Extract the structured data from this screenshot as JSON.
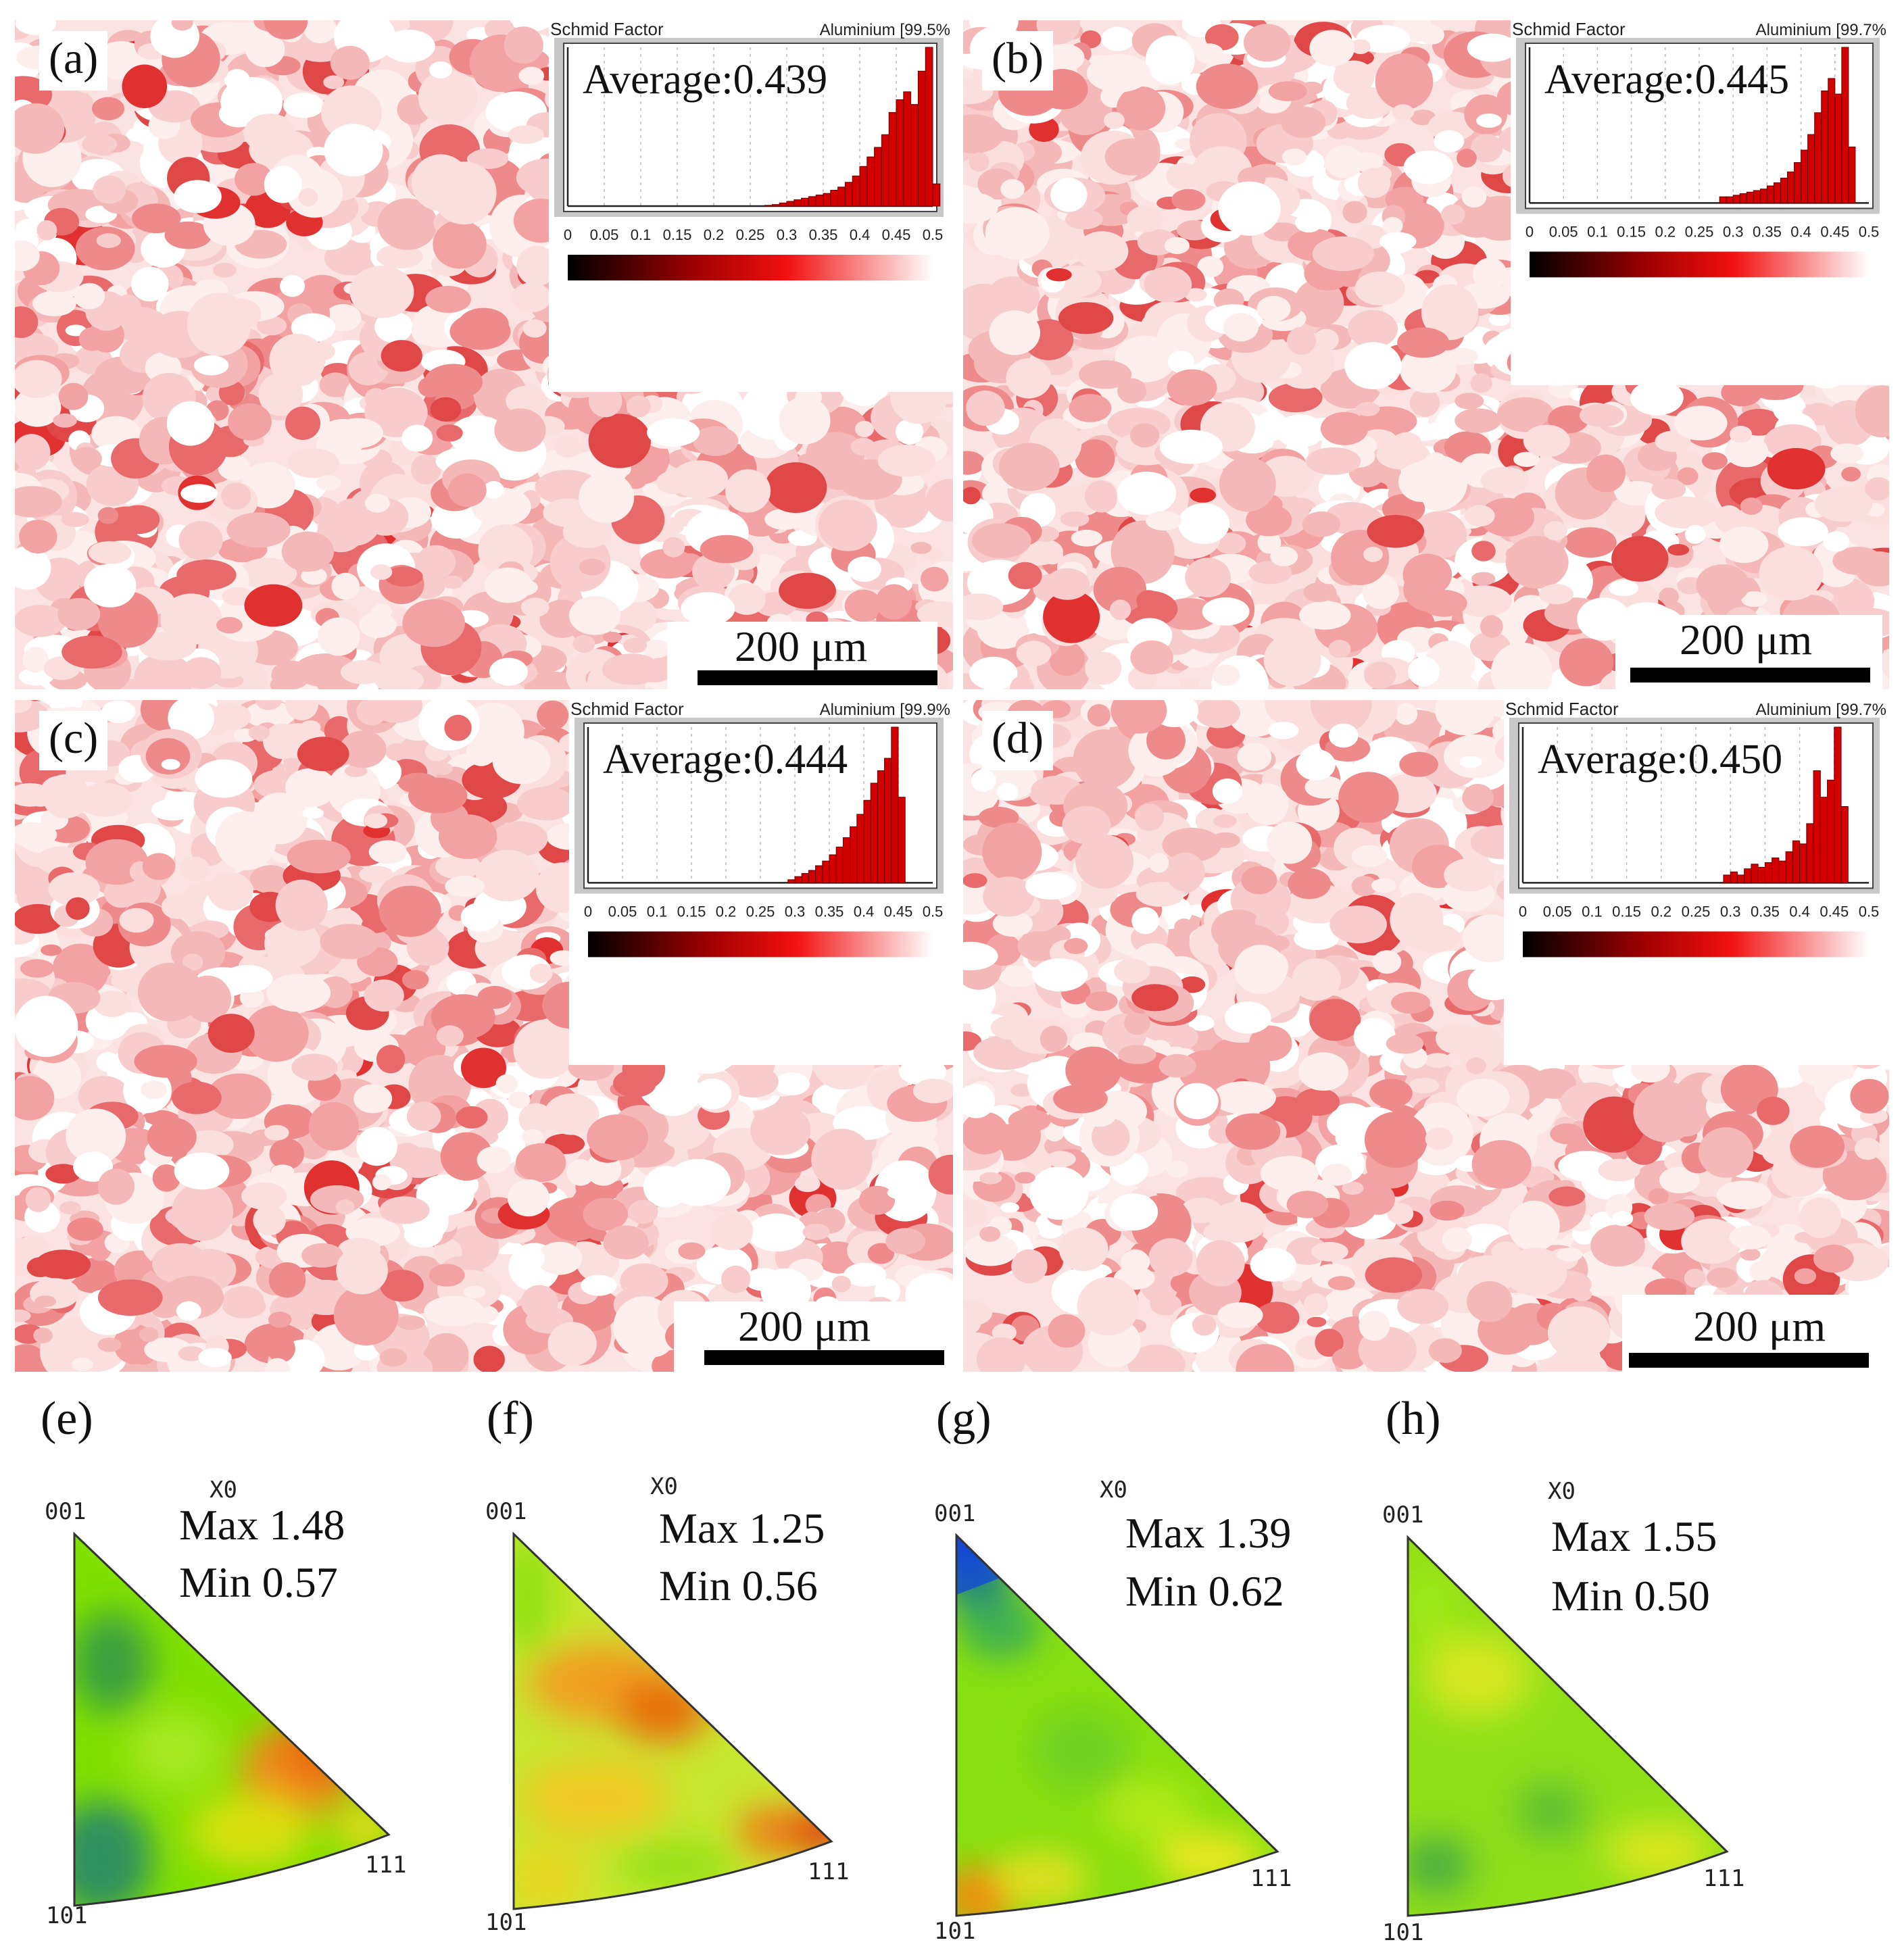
{
  "maps": [
    {
      "label": "(a)",
      "average_text": "Average:0.439",
      "title_left": "Schmid Factor",
      "title_right": "Aluminium [99.5%",
      "scale": "200 μm"
    },
    {
      "label": "(b)",
      "average_text": "Average:0.445",
      "title_left": "Schmid Factor",
      "title_right": "Aluminium [99.7%",
      "scale": "200 μm"
    },
    {
      "label": "(c)",
      "average_text": "Average:0.444",
      "title_left": "Schmid Factor",
      "title_right": "Aluminium [99.9%",
      "scale": "200 μm"
    },
    {
      "label": "(d)",
      "average_text": "Average:0.450",
      "title_left": "Schmid Factor",
      "title_right": "Aluminium [99.7%",
      "scale": "200 μm"
    }
  ],
  "chart_data": [
    {
      "type": "bar",
      "panel": "a",
      "title": "Schmid Factor",
      "xlim": [
        0,
        0.5
      ],
      "xticks": [
        "0",
        "0.05",
        "0.1",
        "0.15",
        "0.2",
        "0.25",
        "0.3",
        "0.35",
        "0.4",
        "0.45",
        "0.5"
      ],
      "bin_start": 0.27,
      "bin_width": 0.01,
      "values": [
        0.5,
        1,
        2,
        3,
        4,
        5,
        6,
        7,
        8,
        10,
        12,
        15,
        19,
        25,
        31,
        37,
        45,
        59,
        67,
        72,
        64,
        85,
        100,
        14
      ]
    },
    {
      "type": "bar",
      "panel": "b",
      "title": "Schmid Factor",
      "xlim": [
        0,
        0.5
      ],
      "xticks": [
        "0",
        "0.05",
        "0.1",
        "0.15",
        "0.2",
        "0.25",
        "0.3",
        "0.35",
        "0.4",
        "0.45",
        "0.5"
      ],
      "bin_start": 0.28,
      "bin_width": 0.01,
      "values": [
        4,
        4,
        5,
        6,
        7,
        8,
        9,
        11,
        13,
        16,
        20,
        26,
        34,
        44,
        58,
        72,
        80,
        70,
        100,
        36
      ]
    },
    {
      "type": "bar",
      "panel": "c",
      "title": "Schmid Factor",
      "xlim": [
        0,
        0.5
      ],
      "xticks": [
        "0",
        "0.05",
        "0.1",
        "0.15",
        "0.2",
        "0.25",
        "0.3",
        "0.35",
        "0.4",
        "0.45",
        "0.5"
      ],
      "bin_start": 0.29,
      "bin_width": 0.01,
      "values": [
        2,
        4,
        6,
        8,
        11,
        14,
        18,
        23,
        29,
        36,
        44,
        53,
        64,
        72,
        80,
        100,
        55
      ]
    },
    {
      "type": "bar",
      "panel": "d",
      "title": "Schmid Factor",
      "xlim": [
        0,
        0.5
      ],
      "xticks": [
        "0",
        "0.05",
        "0.1",
        "0.15",
        "0.2",
        "0.25",
        "0.3",
        "0.35",
        "0.4",
        "0.45",
        "0.5"
      ],
      "bin_start": 0.29,
      "bin_width": 0.01,
      "values": [
        5,
        7,
        5,
        9,
        12,
        10,
        13,
        16,
        14,
        20,
        27,
        25,
        38,
        72,
        55,
        66,
        100,
        49
      ]
    }
  ],
  "ipf": [
    {
      "label": "(e)",
      "max_text": "Max 1.48",
      "min_text": "Min  0.57",
      "x0": "X0",
      "v001": "001",
      "v101": "101",
      "v111": "111"
    },
    {
      "label": "(f)",
      "max_text": "Max 1.25",
      "min_text": "Min  0.56",
      "x0": "X0",
      "v001": "001",
      "v101": "101",
      "v111": "111"
    },
    {
      "label": "(g)",
      "max_text": "Max 1.39",
      "min_text": "Min  0.62",
      "x0": "X0",
      "v001": "001",
      "v101": "101",
      "v111": "111"
    },
    {
      "label": "(h)",
      "max_text": "Max 1.55",
      "min_text": "Min  0.50",
      "x0": "X0",
      "v001": "001",
      "v101": "101",
      "v111": "111"
    }
  ]
}
